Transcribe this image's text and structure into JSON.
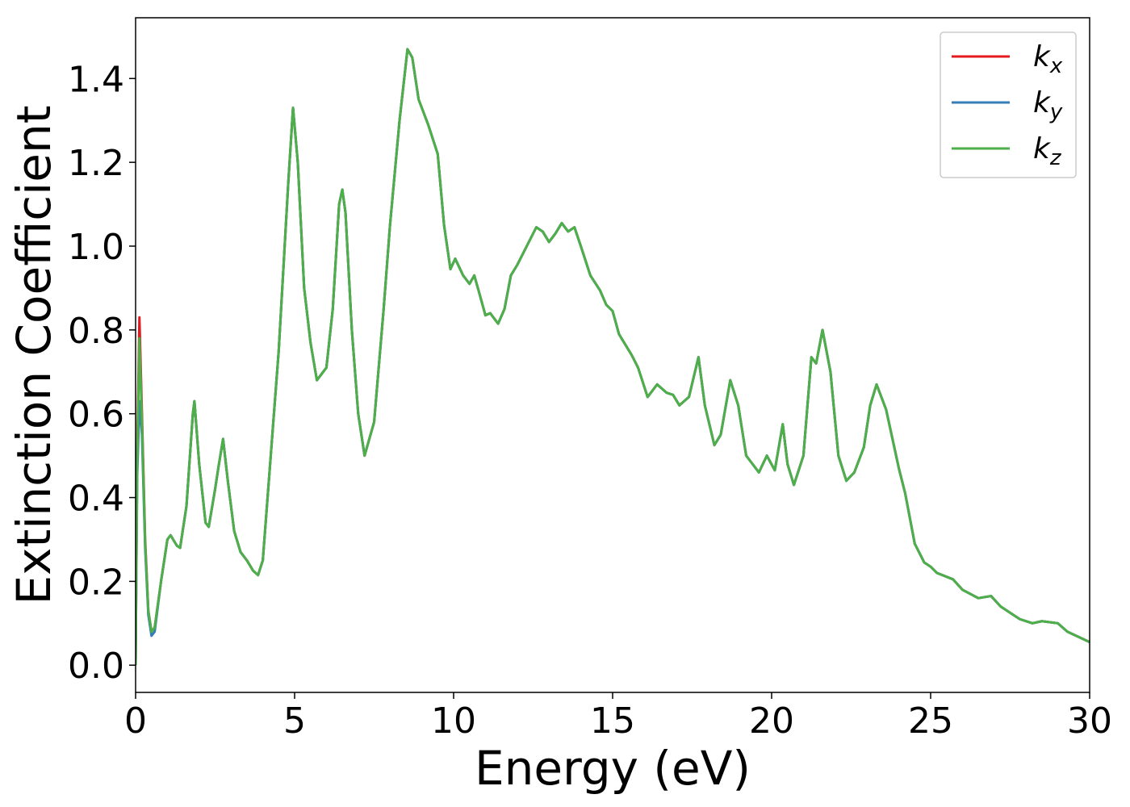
{
  "chart_data": {
    "type": "line",
    "xlabel": "Energy (eV)",
    "ylabel": "Extinction Coefficient",
    "x": [
      0,
      0.05,
      0.12,
      0.2,
      0.3,
      0.4,
      0.5,
      0.6,
      0.8,
      1.0,
      1.1,
      1.3,
      1.4,
      1.6,
      1.8,
      1.85,
      2.0,
      2.2,
      2.3,
      2.5,
      2.6,
      2.75,
      2.9,
      3.1,
      3.3,
      3.5,
      3.7,
      3.85,
      4.0,
      4.2,
      4.5,
      4.8,
      4.95,
      5.1,
      5.3,
      5.5,
      5.7,
      6.0,
      6.2,
      6.4,
      6.5,
      6.6,
      6.8,
      7.0,
      7.2,
      7.5,
      7.8,
      8.0,
      8.3,
      8.55,
      8.7,
      8.9,
      9.2,
      9.5,
      9.7,
      9.9,
      10.05,
      10.3,
      10.5,
      10.65,
      10.8,
      11.0,
      11.15,
      11.4,
      11.6,
      11.8,
      12.0,
      12.3,
      12.6,
      12.8,
      13.0,
      13.2,
      13.4,
      13.6,
      13.8,
      14.0,
      14.3,
      14.6,
      14.8,
      15.0,
      15.2,
      15.6,
      15.8,
      16.1,
      16.4,
      16.7,
      16.9,
      17.1,
      17.4,
      17.7,
      17.9,
      18.2,
      18.4,
      18.7,
      18.95,
      19.2,
      19.6,
      19.85,
      20.1,
      20.35,
      20.5,
      20.7,
      21.0,
      21.25,
      21.4,
      21.6,
      21.85,
      22.1,
      22.35,
      22.6,
      22.9,
      23.1,
      23.3,
      23.6,
      24.0,
      24.2,
      24.5,
      24.8,
      25.0,
      25.2,
      25.7,
      26.0,
      26.5,
      26.9,
      27.2,
      27.8,
      28.2,
      28.5,
      29.0,
      29.3,
      30.0
    ],
    "series": [
      {
        "name": "kx",
        "color": "#e41a1c",
        "values": [
          0,
          0.5,
          0.83,
          0.6,
          0.3,
          0.13,
          0.08,
          0.09,
          0.2,
          0.3,
          0.31,
          0.285,
          0.28,
          0.38,
          0.6,
          0.63,
          0.48,
          0.34,
          0.33,
          0.42,
          0.47,
          0.54,
          0.44,
          0.32,
          0.27,
          0.25,
          0.225,
          0.215,
          0.25,
          0.45,
          0.75,
          1.15,
          1.33,
          1.2,
          0.9,
          0.77,
          0.68,
          0.71,
          0.85,
          1.1,
          1.135,
          1.08,
          0.8,
          0.6,
          0.5,
          0.58,
          0.85,
          1.05,
          1.3,
          1.47,
          1.45,
          1.35,
          1.29,
          1.22,
          1.05,
          0.945,
          0.97,
          0.93,
          0.91,
          0.93,
          0.89,
          0.835,
          0.84,
          0.815,
          0.85,
          0.93,
          0.955,
          1.0,
          1.045,
          1.035,
          1.01,
          1.03,
          1.055,
          1.035,
          1.045,
          1.0,
          0.93,
          0.895,
          0.86,
          0.845,
          0.79,
          0.74,
          0.71,
          0.64,
          0.67,
          0.65,
          0.645,
          0.62,
          0.64,
          0.735,
          0.62,
          0.525,
          0.55,
          0.68,
          0.62,
          0.5,
          0.46,
          0.5,
          0.465,
          0.575,
          0.48,
          0.43,
          0.5,
          0.735,
          0.72,
          0.8,
          0.7,
          0.5,
          0.44,
          0.46,
          0.52,
          0.62,
          0.67,
          0.61,
          0.47,
          0.41,
          0.29,
          0.245,
          0.235,
          0.22,
          0.205,
          0.18,
          0.16,
          0.165,
          0.14,
          0.11,
          0.1,
          0.105,
          0.1,
          0.08,
          0.055
        ]
      },
      {
        "name": "ky",
        "color": "#377eb8",
        "values": [
          0,
          0.45,
          0.63,
          0.55,
          0.28,
          0.12,
          0.07,
          0.08,
          0.2,
          0.3,
          0.31,
          0.285,
          0.28,
          0.38,
          0.6,
          0.63,
          0.48,
          0.34,
          0.33,
          0.42,
          0.47,
          0.54,
          0.44,
          0.32,
          0.27,
          0.25,
          0.225,
          0.215,
          0.25,
          0.45,
          0.75,
          1.15,
          1.33,
          1.2,
          0.9,
          0.77,
          0.68,
          0.71,
          0.85,
          1.1,
          1.135,
          1.08,
          0.8,
          0.6,
          0.5,
          0.58,
          0.85,
          1.05,
          1.3,
          1.47,
          1.45,
          1.35,
          1.29,
          1.22,
          1.05,
          0.945,
          0.97,
          0.93,
          0.91,
          0.93,
          0.89,
          0.835,
          0.84,
          0.815,
          0.85,
          0.93,
          0.955,
          1.0,
          1.045,
          1.035,
          1.01,
          1.03,
          1.055,
          1.035,
          1.045,
          1.0,
          0.93,
          0.895,
          0.86,
          0.845,
          0.79,
          0.74,
          0.71,
          0.64,
          0.67,
          0.65,
          0.645,
          0.62,
          0.64,
          0.735,
          0.62,
          0.525,
          0.55,
          0.68,
          0.62,
          0.5,
          0.46,
          0.5,
          0.465,
          0.575,
          0.48,
          0.43,
          0.5,
          0.735,
          0.72,
          0.8,
          0.7,
          0.5,
          0.44,
          0.46,
          0.52,
          0.62,
          0.67,
          0.61,
          0.47,
          0.41,
          0.29,
          0.245,
          0.235,
          0.22,
          0.205,
          0.18,
          0.16,
          0.165,
          0.14,
          0.11,
          0.1,
          0.105,
          0.1,
          0.08,
          0.055
        ]
      },
      {
        "name": "kz",
        "color": "#4daf4a",
        "values": [
          0,
          0.48,
          0.78,
          0.58,
          0.29,
          0.13,
          0.08,
          0.09,
          0.2,
          0.3,
          0.31,
          0.285,
          0.28,
          0.38,
          0.6,
          0.63,
          0.48,
          0.34,
          0.33,
          0.42,
          0.47,
          0.54,
          0.44,
          0.32,
          0.27,
          0.25,
          0.225,
          0.215,
          0.25,
          0.45,
          0.75,
          1.15,
          1.33,
          1.2,
          0.9,
          0.77,
          0.68,
          0.71,
          0.85,
          1.1,
          1.135,
          1.08,
          0.8,
          0.6,
          0.5,
          0.58,
          0.85,
          1.05,
          1.3,
          1.47,
          1.45,
          1.35,
          1.29,
          1.22,
          1.05,
          0.945,
          0.97,
          0.93,
          0.91,
          0.93,
          0.89,
          0.835,
          0.84,
          0.815,
          0.85,
          0.93,
          0.955,
          1.0,
          1.045,
          1.035,
          1.01,
          1.03,
          1.055,
          1.035,
          1.045,
          1.0,
          0.93,
          0.895,
          0.86,
          0.845,
          0.79,
          0.74,
          0.71,
          0.64,
          0.67,
          0.65,
          0.645,
          0.62,
          0.64,
          0.735,
          0.62,
          0.525,
          0.55,
          0.68,
          0.62,
          0.5,
          0.46,
          0.5,
          0.465,
          0.575,
          0.48,
          0.43,
          0.5,
          0.735,
          0.72,
          0.8,
          0.7,
          0.5,
          0.44,
          0.46,
          0.52,
          0.62,
          0.67,
          0.61,
          0.47,
          0.41,
          0.29,
          0.245,
          0.235,
          0.22,
          0.205,
          0.18,
          0.16,
          0.165,
          0.14,
          0.11,
          0.1,
          0.105,
          0.1,
          0.08,
          0.055
        ]
      }
    ],
    "xlim": [
      0,
      30
    ],
    "xticks": [
      0,
      5,
      10,
      15,
      20,
      25,
      30
    ],
    "ylim": [
      -0.065,
      1.545
    ],
    "yticks": [
      {
        "value": 0,
        "label": "0.0"
      },
      0.2,
      0.4,
      0.6,
      0.8,
      {
        "value": 1,
        "label": "1.0"
      },
      1.2,
      1.4
    ],
    "legend": "upper right"
  }
}
